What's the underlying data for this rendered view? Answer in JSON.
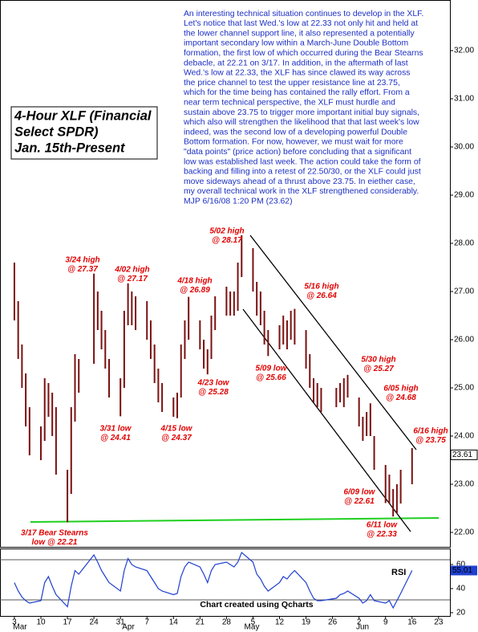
{
  "chart_data": {
    "type": "range-bar",
    "title": [
      "4-Hour XLF (Financial",
      "Select SPDR)",
      "Jan. 15th-Present"
    ],
    "commentary": [
      "An interesting technical situation continues to develop in the XLF.",
      "Let's notice that last Wed.'s low at 22.33 not only hit and held at",
      "the lower channel support line, it also represented a potentially",
      "important secondary low within a March-June Double Bottom",
      "formation, the first low of which occurred during the Bear Stearns",
      "debacle, at 22.21 on 3/17. In addition, in the aftermath of last",
      "Wed.'s low at 22.33, the XLF has since clawed its way across",
      "the price channel to test the upper resistance line at 23.75,",
      "which for the time being has contained the rally effort. From a",
      "near term technical perspective, the XLF must hurdle and",
      "sustain above 23.75 to trigger more important initial buy signals,",
      "which also will strengthen the likelihood that that last week's low",
      "indeed, was the second low of a developing powerful Double",
      "Bottom formation. For now, however, we must wait for more",
      "\"data points\" (price action) before concluding that a significant",
      "low was established last week. The action could take the form of",
      "backing and filling into a retest of 22.50/30, or the XLF could just",
      "move sideways ahead of a thrust above 23.75. In eiether case,",
      "my overall technical work in the XLF strengthened considerably.",
      "MJP  6/16/08  1:20 PM  (23.62)"
    ],
    "annotations": [
      [
        "3/24 high",
        "@ 27.37"
      ],
      [
        "4/02 high",
        "@ 27.17"
      ],
      [
        "4/18 high",
        "@ 26.89"
      ],
      [
        "5/02 high",
        "@ 28.17"
      ],
      [
        "5/16 high",
        "@ 26.64"
      ],
      [
        "5/30 high",
        "@ 25.27"
      ],
      [
        "6/05 high",
        "@ 24.68"
      ],
      [
        "6/16 high",
        "@ 23.75"
      ],
      [
        "3/31 low",
        "@ 24.41"
      ],
      [
        "4/15 low",
        "@ 24.37"
      ],
      [
        "4/23 low",
        "@ 25.28"
      ],
      [
        "5/09 low",
        "@ 25.66"
      ],
      [
        "6/09 low",
        "@ 22.61"
      ],
      [
        "6/11 low",
        "@ 22.33"
      ],
      [
        "3/17 Bear Stearns",
        "low @ 22.21"
      ]
    ],
    "x": [
      0,
      1,
      2,
      3,
      4,
      7,
      8,
      9,
      10,
      11,
      14,
      15,
      16,
      17,
      21,
      22,
      23,
      24,
      25,
      28,
      29,
      30,
      31,
      32,
      35,
      36,
      37,
      38,
      39,
      42,
      43,
      44,
      45,
      46,
      49,
      50,
      51,
      52,
      53,
      56,
      57,
      58,
      59,
      60,
      63,
      64,
      65,
      66,
      67,
      70,
      71,
      72,
      73,
      74,
      77,
      78,
      79,
      80,
      81,
      85,
      86,
      87,
      88,
      91,
      92,
      93,
      94,
      95,
      98,
      99,
      100,
      101,
      102,
      105
    ],
    "high": [
      27.6,
      26.8,
      25.9,
      25.3,
      24.6,
      24.2,
      25.2,
      25.1,
      24.9,
      24.6,
      23.3,
      24.6,
      25.7,
      25.6,
      27.37,
      27.0,
      26.6,
      26.2,
      25.6,
      25.2,
      26.6,
      27.17,
      27.0,
      26.9,
      26.8,
      26.4,
      25.9,
      25.4,
      25.1,
      24.8,
      24.9,
      25.9,
      26.4,
      26.89,
      26.4,
      26.0,
      25.8,
      26.5,
      26.9,
      27.1,
      27.0,
      27.0,
      27.6,
      28.17,
      27.9,
      27.2,
      27.0,
      26.6,
      26.2,
      26.3,
      26.5,
      26.4,
      26.6,
      26.64,
      26.2,
      25.7,
      25.2,
      25.1,
      25.0,
      25.0,
      25.1,
      25.2,
      25.27,
      24.8,
      24.4,
      24.5,
      24.68,
      24.0,
      23.4,
      23.2,
      22.9,
      23.0,
      23.3,
      23.75
    ],
    "low": [
      26.4,
      25.6,
      25.0,
      24.2,
      23.6,
      23.5,
      23.9,
      24.4,
      24.0,
      23.2,
      22.21,
      22.8,
      24.3,
      24.9,
      25.5,
      26.2,
      25.8,
      25.4,
      24.8,
      24.41,
      25.0,
      26.3,
      26.3,
      26.2,
      26.0,
      25.6,
      25.1,
      24.7,
      24.5,
      24.4,
      24.37,
      24.8,
      25.6,
      26.0,
      25.8,
      25.4,
      25.28,
      25.6,
      26.2,
      26.5,
      26.5,
      26.5,
      26.6,
      27.3,
      27.0,
      26.5,
      26.3,
      25.9,
      25.66,
      25.8,
      25.9,
      25.8,
      26.0,
      25.9,
      25.4,
      25.0,
      24.7,
      24.6,
      24.5,
      24.6,
      24.7,
      24.6,
      24.8,
      24.2,
      23.9,
      24.0,
      24.0,
      23.3,
      22.61,
      22.6,
      22.33,
      22.4,
      22.6,
      23.0
    ],
    "color": "#7a1010",
    "last_price": 23.61,
    "rsi": {
      "name": "RSI",
      "color": "#1f3fd0",
      "values": [
        45,
        38,
        33,
        30,
        28,
        30,
        45,
        50,
        42,
        35,
        25,
        42,
        55,
        52,
        68,
        62,
        55,
        50,
        45,
        38,
        55,
        65,
        60,
        58,
        55,
        50,
        45,
        40,
        38,
        35,
        36,
        50,
        58,
        62,
        58,
        52,
        45,
        55,
        60,
        62,
        60,
        58,
        62,
        70,
        62,
        52,
        48,
        42,
        38,
        45,
        50,
        48,
        52,
        55,
        45,
        38,
        32,
        30,
        30,
        32,
        35,
        36,
        38,
        32,
        28,
        30,
        35,
        30,
        28,
        30,
        24,
        30,
        36,
        55.01
      ]
    },
    "xlim": [
      -3.8,
      115
    ],
    "xticks": [
      {
        "value": 0,
        "label": "3"
      },
      {
        "value": 7,
        "label": "10"
      },
      {
        "value": 14,
        "label": "17"
      },
      {
        "value": 21,
        "label": "24"
      },
      {
        "value": 28,
        "label": "31"
      },
      {
        "value": 35,
        "label": "7"
      },
      {
        "value": 42,
        "label": "14"
      },
      {
        "value": 49,
        "label": "21"
      },
      {
        "value": 56,
        "label": "28"
      },
      {
        "value": 63,
        "label": "5"
      },
      {
        "value": 70,
        "label": "12"
      },
      {
        "value": 77,
        "label": "19"
      },
      {
        "value": 84,
        "label": "26"
      },
      {
        "value": 91,
        "label": "2"
      },
      {
        "value": 98,
        "label": "9"
      },
      {
        "value": 105,
        "label": "16"
      },
      {
        "value": 112,
        "label": "23"
      }
    ],
    "months": [
      "Mar",
      "Apr",
      "May",
      "Jun"
    ],
    "ylim": [
      21.7,
      33.05
    ],
    "yticks": [
      {
        "value": 22,
        "label": "22.00"
      },
      {
        "value": 23,
        "label": "23.00"
      },
      {
        "value": 24,
        "label": "24.00"
      },
      {
        "value": 25,
        "label": "25.00"
      },
      {
        "value": 26,
        "label": "26.00"
      },
      {
        "value": 27,
        "label": "27.00"
      },
      {
        "value": 28,
        "label": "28.00"
      },
      {
        "value": 29,
        "label": "29.00"
      },
      {
        "value": 30,
        "label": "30.00"
      },
      {
        "value": 31,
        "label": "31.00"
      },
      {
        "value": 32,
        "label": "32.00"
      }
    ],
    "y2lim": [
      17.3,
      73.3
    ],
    "y2ticks": [
      20,
      40,
      60
    ],
    "footer": "Chart created using Qcharts"
  }
}
